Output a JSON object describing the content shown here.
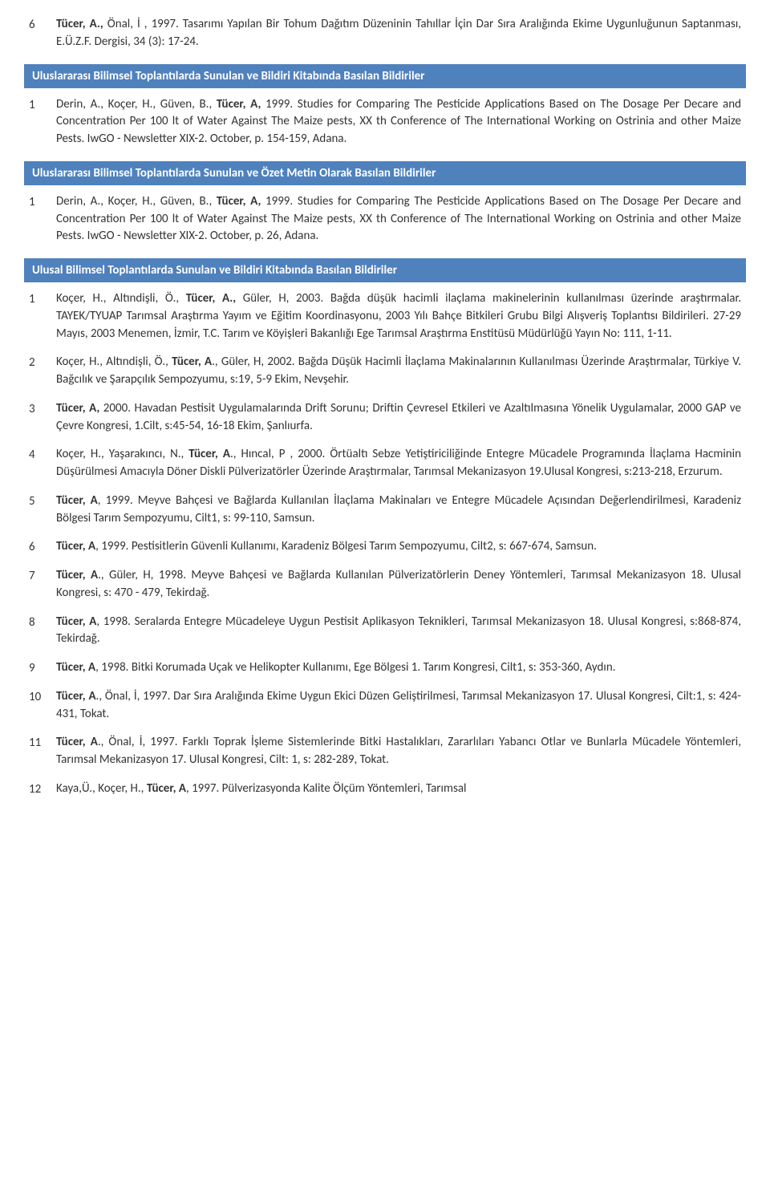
{
  "colors": {
    "header_bg": "#4f81bd",
    "header_text": "#ffffff",
    "body_text": "#333333"
  },
  "topEntry": {
    "num": "6",
    "html": "<b>Tücer, A.,</b> Önal, İ , 1997. Tasarımı Yapılan Bir Tohum Dağıtım Düzeninin Tahıllar İçin Dar Sıra Aralığında Ekime Uygunluğunun Saptanması, E.Ü.Z.F. Dergisi, 34 (3): 17-24."
  },
  "sections": [
    {
      "title": "Uluslararası Bilimsel Toplantılarda Sunulan ve Bildiri Kitabında Basılan Bildiriler",
      "entries": [
        {
          "num": "1",
          "html": "Derin, A., Koçer, H., Güven, B., <b>Tücer, A,</b> 1999. Studies for Comparing  The Pesticide Applications Based on The Dosage Per Decare and Concentration Per 100 lt  of  Water Against The Maize pests, XX th Conference of The International Working on Ostrinia and other Maize Pests. IwGO - Newsletter XIX-2. October, p. 154-159, Adana."
        }
      ]
    },
    {
      "title": "Uluslararası Bilimsel Toplantılarda Sunulan ve Özet Metin Olarak Basılan Bildiriler",
      "entries": [
        {
          "num": "1",
          "html": "Derin, A., Koçer, H., Güven, B., <b>Tücer, A,</b> 1999. Studies for Comparing  The Pesticide Applications Based on The Dosage Per Decare and Concentration Per 100 lt  of  Water Against The Maize pests, XX th Conference of The International Working on Ostrinia and other Maize Pests. IwGO - Newsletter XIX-2. October, p. 26, Adana."
        }
      ]
    },
    {
      "title": "Ulusal Bilimsel Toplantılarda Sunulan ve Bildiri Kitabında Basılan Bildiriler",
      "entries": [
        {
          "num": "1",
          "html": "Koçer, H., Altındişli, Ö., <b>Tücer, A.,</b> Güler, H, 2003. Bağda düşük hacimli ilaçlama makinelerinin kullanılması üzerinde araştırmalar. TAYEK/TYUAP Tarımsal Araştırma Yayım ve Eğitim Koordinasyonu, 2003 Yılı Bahçe Bitkileri Grubu Bilgi Alışveriş Toplantısı Bildirileri. 27-29 Mayıs, 2003 Menemen, İzmir, T.C. Tarım ve Köyişleri Bakanlığı Ege Tarımsal Araştırma Enstitüsü Müdürlüğü Yayın No: 111, 1-11."
        },
        {
          "num": "2",
          "html": "Koçer, H., Altındişli, Ö., <b>Tücer, A</b>., Güler, H, 2002. Bağda Düşük Hacimli İlaçlama Makinalarının Kullanılması Üzerinde Araştırmalar, Türkiye V. Bağcılık ve Şarapçılık Sempozyumu, s:19, 5-9 Ekim, Nevşehir."
        },
        {
          "num": "3",
          "html": "<b>Tücer, A,</b> 2000. Havadan Pestisit Uygulamalarında Drift Sorunu; Driftin Çevresel Etkileri ve Azaltılmasına Yönelik Uygulamalar, 2000 GAP ve Çevre Kongresi, 1.Cilt, s:45-54, 16-18 Ekim, Şanlıurfa."
        },
        {
          "num": "4",
          "html": "Koçer, H., Yaşarakıncı, N.,  <b>Tücer, A</b>., Hıncal, P , 2000. Örtüaltı Sebze Yetiştiriciliğinde Entegre Mücadele Programında İlaçlama Hacminin Düşürülmesi Amacıyla Döner Diskli Pülverizatörler Üzerinde Araştırmalar, Tarımsal Mekanizasyon 19.Ulusal Kongresi, s:213-218, Erzurum."
        },
        {
          "num": "5",
          "html": "<b>Tücer, A</b>, 1999. Meyve Bahçesi ve Bağlarda Kullanılan İlaçlama Makinaları ve Entegre Mücadele Açısından Değerlendirilmesi, Karadeniz Bölgesi Tarım Sempozyumu, Cilt1, s: 99-110, Samsun."
        },
        {
          "num": "6",
          "html": "<b>Tücer, A</b>, 1999. Pestisitlerin Güvenli Kullanımı, Karadeniz Bölgesi Tarım Sempozyumu, Cilt2, s: 667-674, Samsun."
        },
        {
          "num": "7",
          "html": "<b>Tücer, A</b>., Güler, H, 1998.  Meyve Bahçesi ve Bağlarda Kullanılan Pülverizatörlerin Deney Yöntemleri, Tarımsal Mekanizasyon 18.  Ulusal Kongresi,  s:  470 - 479, Tekirdağ."
        },
        {
          "num": "8",
          "html": "<b>Tücer, A</b>, 1998. Seralarda Entegre Mücadeleye Uygun Pestisit Aplikasyon Teknikleri, Tarımsal Mekanizasyon 18. Ulusal Kongresi, s:868-874, Tekirdağ."
        },
        {
          "num": "9",
          "html": "<b>Tücer, A</b>, 1998. Bitki Korumada Uçak ve Helikopter Kullanımı, Ege Bölgesi 1. Tarım Kongresi, Cilt1, s: 353-360, Aydın."
        },
        {
          "num": "10",
          "html": "<b>Tücer, A</b>., Önal, İ, 1997. Dar Sıra Aralığında Ekime Uygun Ekici Düzen Geliştirilmesi, Tarımsal Mekanizasyon 17. Ulusal Kongresi, Cilt:1, s:  424-431, Tokat."
        },
        {
          "num": "11",
          "html": "<b>Tücer, A</b>., Önal, İ, 1997. Farklı  Toprak  İşleme  Sistemlerinde  Bitki  Hastalıkları, Zararlıları Yabancı Otlar ve Bunlarla Mücadele  Yöntemleri, Tarımsal Mekanizasyon 17. Ulusal Kongresi, Cilt: 1, s: 282-289, Tokat."
        },
        {
          "num": "12",
          "html": "Kaya,Ü., Koçer, H., <b>Tücer, A</b>, 1997. Pülverizasyonda Kalite Ölçüm Yöntemleri, Tarımsal"
        }
      ]
    }
  ]
}
